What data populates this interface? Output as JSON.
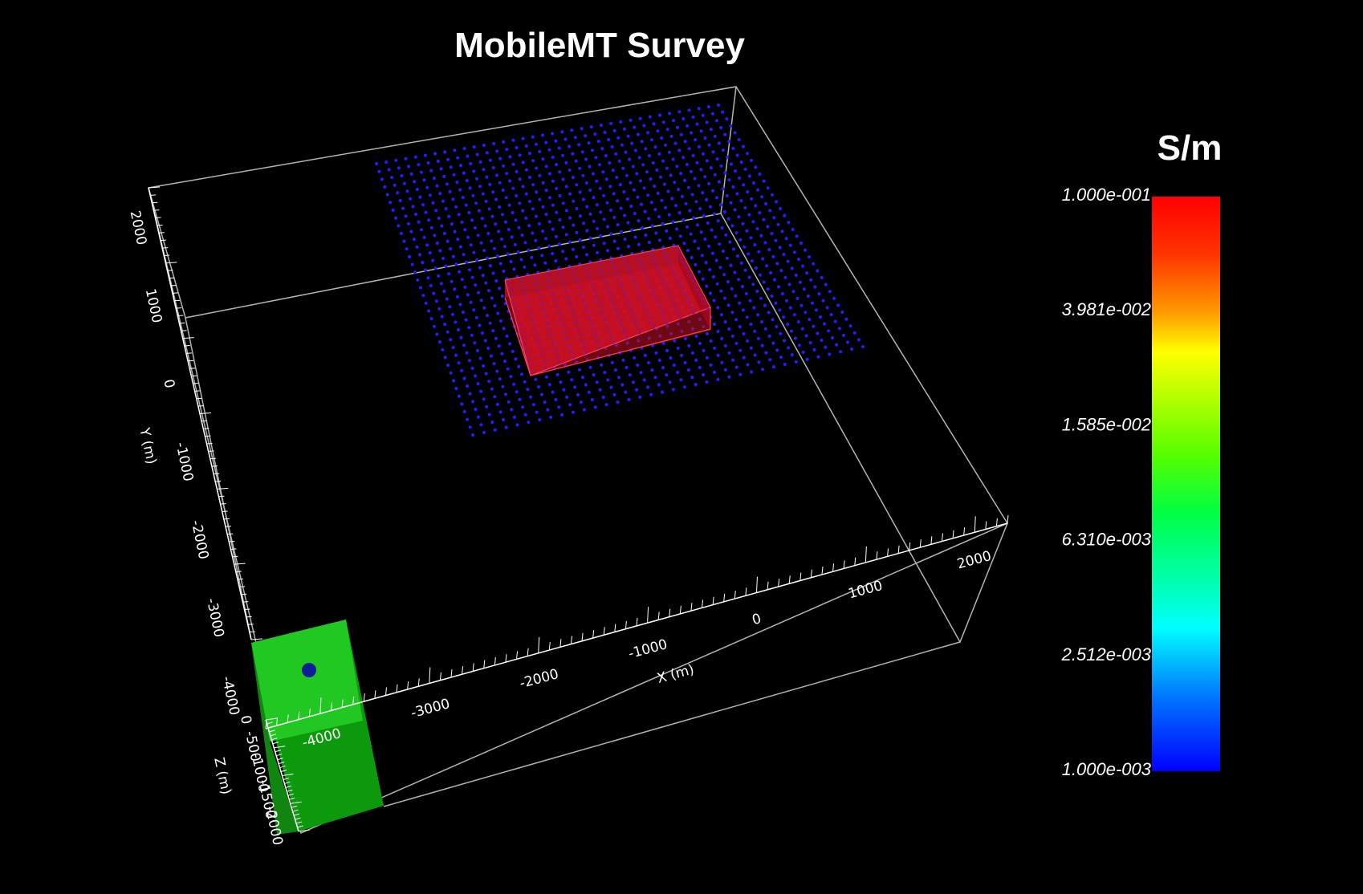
{
  "title": "MobileMT Survey",
  "colorbar": {
    "unit": "S/m",
    "labels": [
      "1.000e-001",
      "3.981e-002",
      "1.585e-002",
      "6.310e-003",
      "2.512e-003",
      "1.000e-003"
    ],
    "scale": "log"
  },
  "axes": {
    "x": {
      "title": "X (m)",
      "ticks": [
        "-4000",
        "-3000",
        "-2000",
        "-1000",
        "0",
        "1000",
        "2000"
      ]
    },
    "y": {
      "title": "Y (m)",
      "ticks": [
        "2000",
        "1000",
        "0",
        "-1000",
        "-2000",
        "-3000",
        "-4000"
      ]
    },
    "z": {
      "title": "Z (m)",
      "ticks": [
        "0",
        "-500",
        "-1000",
        "-1500",
        "-2000"
      ]
    }
  },
  "colors": {
    "background": "#000000",
    "box_outline": "#b4b4b4",
    "stations": "#1e1eff",
    "anomaly": "#e01020",
    "section": "#22c822",
    "marker": "#0a1e96"
  }
}
